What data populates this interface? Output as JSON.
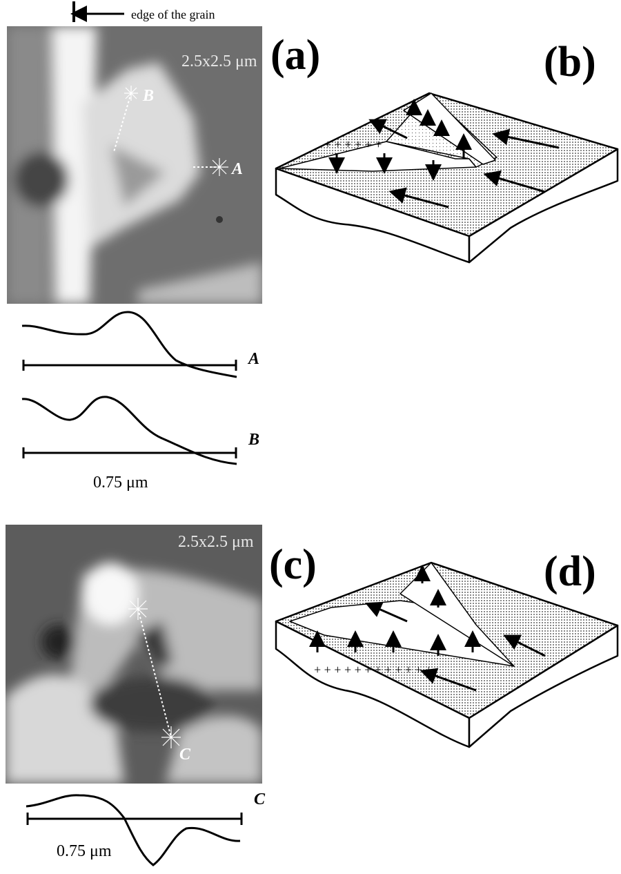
{
  "annotation": "edge of the grain",
  "panel_a": {
    "label": "(a)",
    "size": "2.5x2.5 μm",
    "markers": [
      "B",
      "A"
    ]
  },
  "profiles_a": {
    "labels": [
      "A",
      "B"
    ],
    "scale_bar": "0.75 μm"
  },
  "panel_b": {
    "label": "(b)"
  },
  "panel_c": {
    "label": "(c)",
    "size": "2.5x2.5 μm",
    "markers": [
      "C"
    ]
  },
  "profile_c": {
    "label": "C",
    "scale_bar": "0.75 μm"
  },
  "panel_d": {
    "label": "(d)"
  }
}
